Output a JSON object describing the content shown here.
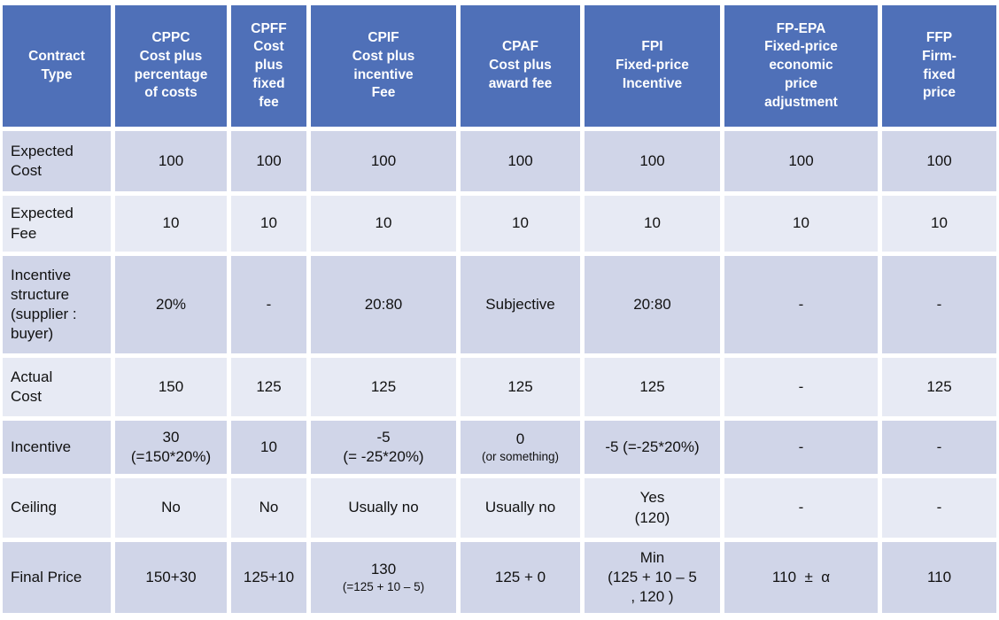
{
  "colors": {
    "background": "#ffffff",
    "header_bg": "#4f70b8",
    "header_text": "#ffffff",
    "band_dark": "#d0d5e8",
    "band_light": "#e7eaf4",
    "body_text": "#111111",
    "gap": "#ffffff"
  },
  "table": {
    "corner_label": "Contract\nType",
    "columns": [
      {
        "id": "cppc",
        "abbr": "CPPC",
        "label": "CPPC\nCost plus\npercentage\nof costs"
      },
      {
        "id": "cpff",
        "abbr": "CPFF",
        "label": "CPFF\nCost\nplus\nfixed\nfee"
      },
      {
        "id": "cpif",
        "abbr": "CPIF",
        "label": "CPIF\nCost plus\nincentive\nFee"
      },
      {
        "id": "cpaf",
        "abbr": "CPAF",
        "label": "CPAF\nCost plus\naward fee"
      },
      {
        "id": "fpi",
        "abbr": "FPI",
        "label": "FPI\nFixed-price\nIncentive"
      },
      {
        "id": "fp-epa",
        "abbr": "FP-EPA",
        "label": "FP-EPA\nFixed-price\neconomic\nprice\nadjustment"
      },
      {
        "id": "ffp",
        "abbr": "FFP",
        "label": "FFP\nFirm-\nfixed\nprice"
      }
    ],
    "rows": [
      {
        "label": "Expected\nCost",
        "band": "dark",
        "cells": [
          [
            {
              "t": "100"
            }
          ],
          [
            {
              "t": "100"
            }
          ],
          [
            {
              "t": "100"
            }
          ],
          [
            {
              "t": "100"
            }
          ],
          [
            {
              "t": "100"
            }
          ],
          [
            {
              "t": "100"
            }
          ],
          [
            {
              "t": "100"
            }
          ]
        ]
      },
      {
        "label": "Expected\nFee",
        "band": "light",
        "cells": [
          [
            {
              "t": "10"
            }
          ],
          [
            {
              "t": "10"
            }
          ],
          [
            {
              "t": "10"
            }
          ],
          [
            {
              "t": "10"
            }
          ],
          [
            {
              "t": "10"
            }
          ],
          [
            {
              "t": "10"
            }
          ],
          [
            {
              "t": "10"
            }
          ]
        ]
      },
      {
        "label": "Incentive\nstructure\n(supplier :\nbuyer)",
        "band": "dark",
        "cells": [
          [
            {
              "t": "20%"
            }
          ],
          [
            {
              "t": "-"
            }
          ],
          [
            {
              "t": "20:80"
            }
          ],
          [
            {
              "t": "Subjective"
            }
          ],
          [
            {
              "t": "20:80"
            }
          ],
          [
            {
              "t": "-"
            }
          ],
          [
            {
              "t": "-"
            }
          ]
        ]
      },
      {
        "label": "Actual\nCost",
        "band": "light",
        "cells": [
          [
            {
              "t": "150"
            }
          ],
          [
            {
              "t": "125"
            }
          ],
          [
            {
              "t": "125"
            }
          ],
          [
            {
              "t": "125"
            }
          ],
          [
            {
              "t": "125"
            }
          ],
          [
            {
              "t": "-"
            }
          ],
          [
            {
              "t": "125"
            }
          ]
        ]
      },
      {
        "label": "Incentive",
        "band": "dark",
        "cells": [
          [
            {
              "t": "30"
            },
            {
              "t": "(=150*20%)"
            }
          ],
          [
            {
              "t": "10"
            }
          ],
          [
            {
              "t": "-5"
            },
            {
              "t": "(= -25*20%)"
            }
          ],
          [
            {
              "t": "0"
            },
            {
              "t": "(or something)",
              "small": true
            }
          ],
          [
            {
              "t": "-5 (=-25*20%)"
            }
          ],
          [
            {
              "t": "-"
            }
          ],
          [
            {
              "t": "-"
            }
          ]
        ]
      },
      {
        "label": "Ceiling",
        "band": "light",
        "cells": [
          [
            {
              "t": "No"
            }
          ],
          [
            {
              "t": "No"
            }
          ],
          [
            {
              "t": "Usually no"
            }
          ],
          [
            {
              "t": "Usually no"
            }
          ],
          [
            {
              "t": "Yes"
            },
            {
              "t": "(120)"
            }
          ],
          [
            {
              "t": "-"
            }
          ],
          [
            {
              "t": "-"
            }
          ]
        ]
      },
      {
        "label": "Final Price",
        "band": "dark",
        "cells": [
          [
            {
              "t": "150+30"
            }
          ],
          [
            {
              "t": "125+10"
            }
          ],
          [
            {
              "t": "130"
            },
            {
              "t": "(=125 + 10 – 5)",
              "small": true
            }
          ],
          [
            {
              "t": "125 + 0"
            }
          ],
          [
            {
              "t": "Min"
            },
            {
              "t": "(125 + 10 – 5"
            },
            {
              "t": ", 120 )"
            }
          ],
          [
            {
              "t": "110  ±  α"
            }
          ],
          [
            {
              "t": "110"
            }
          ]
        ]
      }
    ]
  },
  "chart_data": {
    "type": "table",
    "title": "Contract type comparison",
    "columns": [
      "Contract Type",
      "CPPC Cost plus percentage of costs",
      "CPFF Cost plus fixed fee",
      "CPIF Cost plus incentive Fee",
      "CPAF Cost plus award fee",
      "FPI Fixed-price Incentive",
      "FP-EPA Fixed-price economic price adjustment",
      "FFP Firm-fixed price"
    ],
    "rows": [
      [
        "Expected Cost",
        "100",
        "100",
        "100",
        "100",
        "100",
        "100",
        "100"
      ],
      [
        "Expected Fee",
        "10",
        "10",
        "10",
        "10",
        "10",
        "10",
        "10"
      ],
      [
        "Incentive structure (supplier : buyer)",
        "20%",
        "-",
        "20:80",
        "Subjective",
        "20:80",
        "-",
        "-"
      ],
      [
        "Actual Cost",
        "150",
        "125",
        "125",
        "125",
        "125",
        "-",
        "125"
      ],
      [
        "Incentive",
        "30 (=150*20%)",
        "10",
        "-5 (= -25*20%)",
        "0 (or something)",
        "-5 (=-25*20%)",
        "-",
        "-"
      ],
      [
        "Ceiling",
        "No",
        "No",
        "Usually no",
        "Usually no",
        "Yes (120)",
        "-",
        "-"
      ],
      [
        "Final Price",
        "150+30",
        "125+10",
        "130 (=125 + 10 – 5)",
        "125 + 0",
        "Min (125 + 10 – 5 , 120 )",
        "110 ± α",
        "110"
      ]
    ]
  }
}
